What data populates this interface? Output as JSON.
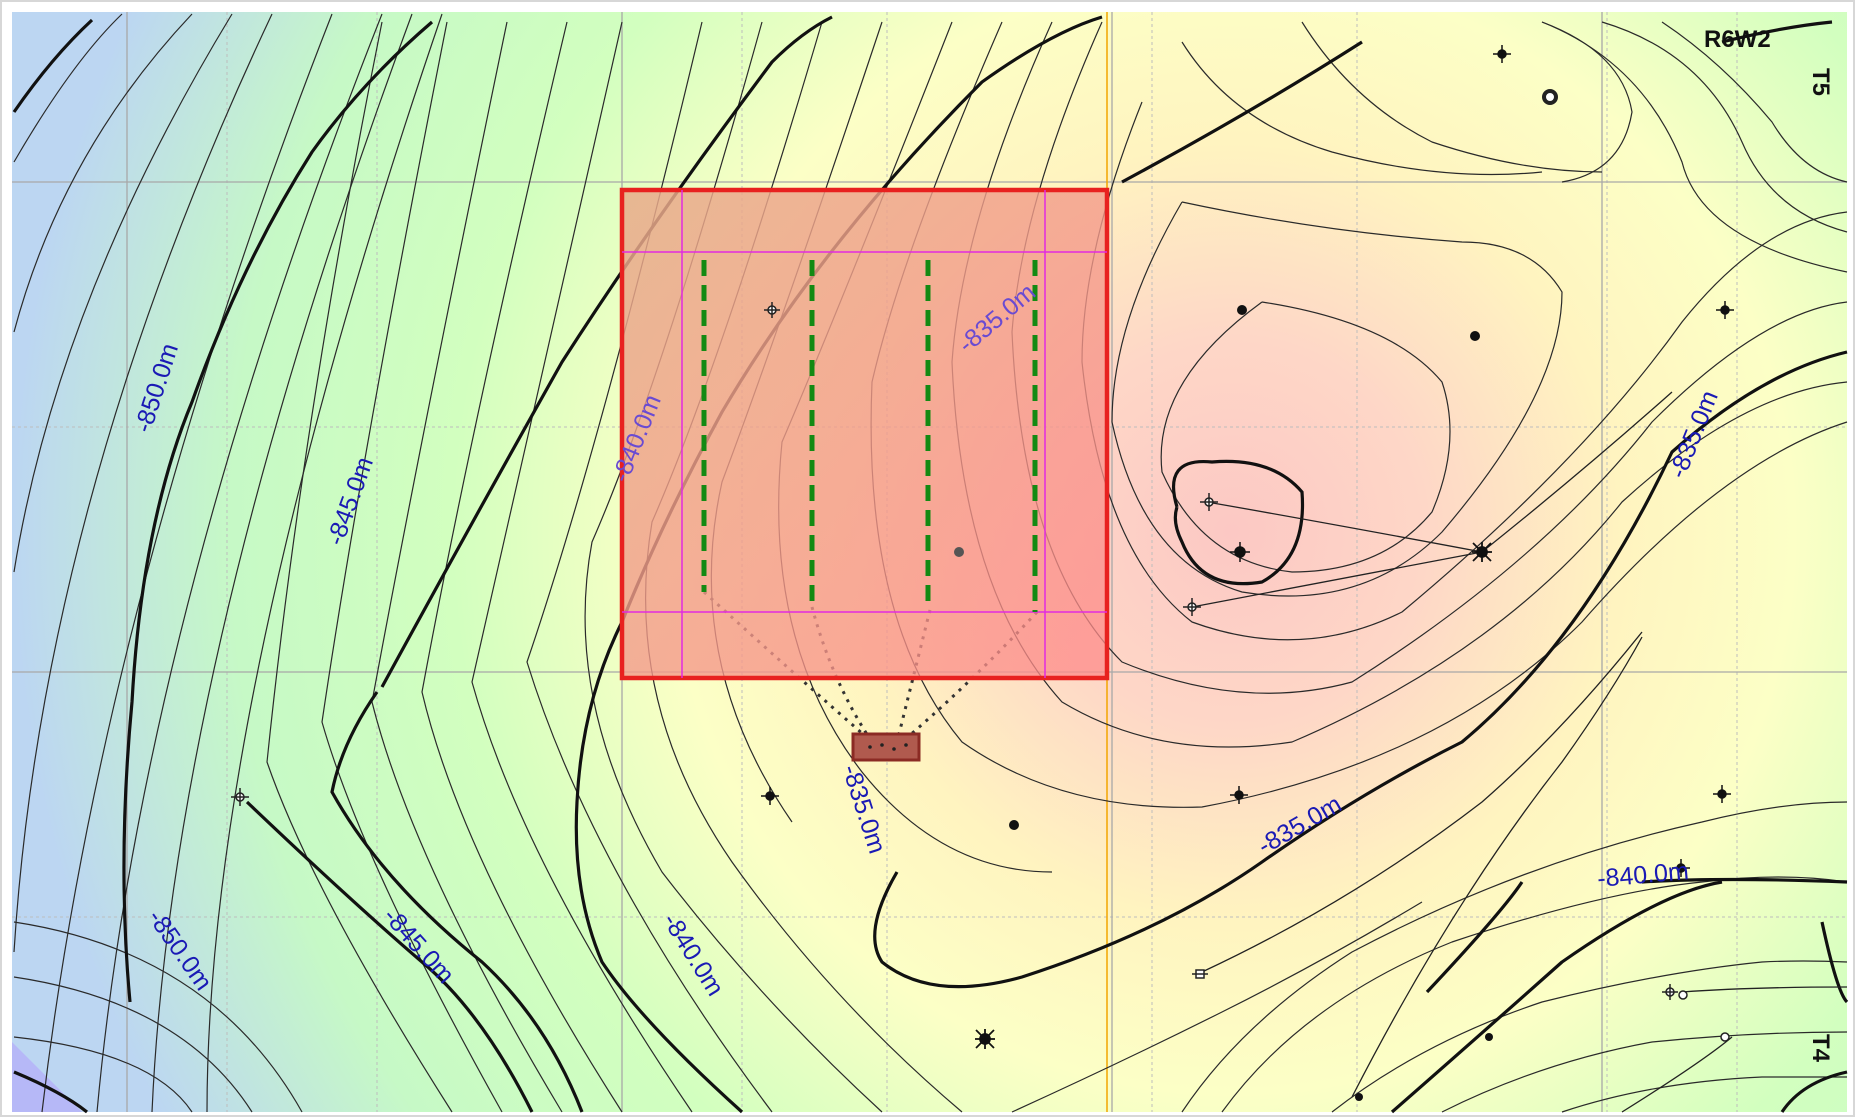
{
  "map": {
    "range_label": "R6W2",
    "township_labels": [
      "T5",
      "T4"
    ],
    "contour_labels": [
      "-850.0m",
      "-850.0m",
      "-845.0m",
      "-845.0m",
      "-840.0m",
      "-840.0m",
      "-840.0m",
      "-835.0m",
      "-835.0m",
      "-835.0m",
      "-835.0m"
    ],
    "colors": {
      "frame": "#d7d7d7",
      "boundary": "#e8211f",
      "wellbore": "#138a13",
      "pad": "#8b2b24",
      "section_grid": "#a8a8a8",
      "lsd_grid": "#bdbdbd",
      "meridian_line": "#f2a500",
      "inner_grid": "#e22be0"
    },
    "icons": [
      "well-symbol-icon",
      "oil-well-icon",
      "dry-hole-icon",
      "gas-well-icon"
    ]
  }
}
